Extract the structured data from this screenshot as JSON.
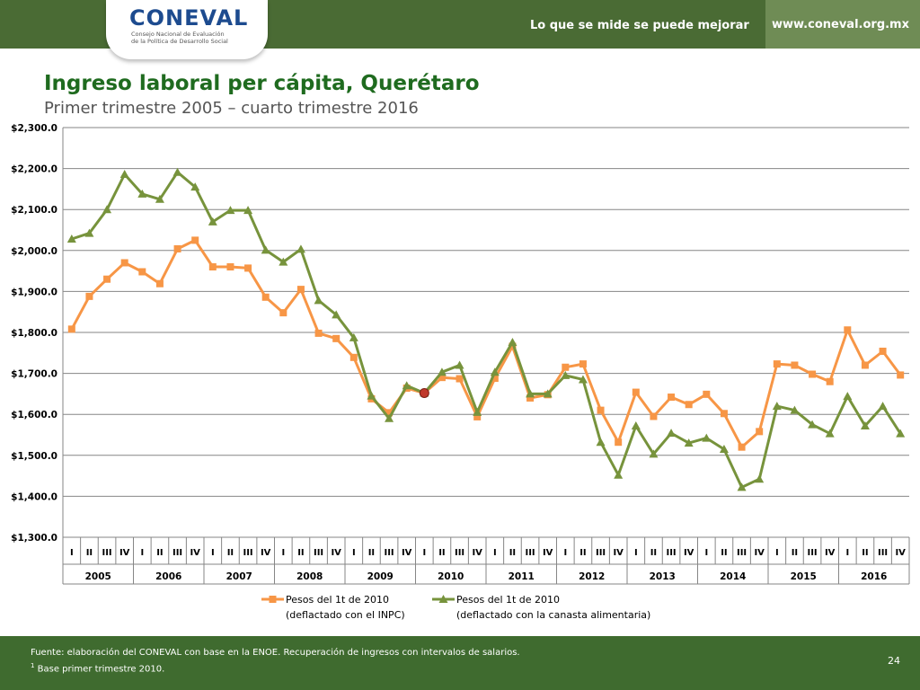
{
  "header": {
    "logo_text": "CONEVAL",
    "logo_sub1": "Consejo Nacional de Evaluación",
    "logo_sub2": "de la Política de Desarrollo Social",
    "slogan": "Lo que se mide se puede mejorar",
    "url": "www.coneval.org.mx"
  },
  "title": "Ingreso laboral per cápita, Querétaro",
  "subtitle": "Primer trimestre 2005 – cuarto trimestre 2016",
  "footer": {
    "note1": "Fuente: elaboración del CONEVAL con base en la ENOE. Recuperación de ingresos con intervalos de salarios.",
    "note2_sup": "1",
    "note2": "Base primer trimestre 2010.",
    "page": "24"
  },
  "colors": {
    "orange": "#f79646",
    "green": "#77933c",
    "base_point": "#c0392b",
    "header_green": "#4a6b34",
    "footer_green": "#3f6b2f"
  },
  "chart_data": {
    "type": "line",
    "ylim": [
      1300,
      2300
    ],
    "y_ticks": [
      "$1,300.0",
      "$1,400.0",
      "$1,500.0",
      "$1,600.0",
      "$1,700.0",
      "$1,800.0",
      "$1,900.0",
      "$2,000.0",
      "$2,100.0",
      "$2,200.0",
      "$2,300.0"
    ],
    "quarters": [
      "I",
      "II",
      "III",
      "IV"
    ],
    "years": [
      "2005",
      "2006",
      "2007",
      "2008",
      "2009",
      "2010",
      "2011",
      "2012",
      "2013",
      "2014",
      "2015",
      "2016"
    ],
    "grid": "horizontal",
    "legend_position": "bottom",
    "series": [
      {
        "name": "Pesos del 1t de 2010",
        "name_line2": "(deflactado con el INPC)",
        "color": "#f79646",
        "marker": "square",
        "values": [
          1808,
          1888,
          1930,
          1970,
          1948,
          1919,
          2004,
          2025,
          1960,
          1960,
          1957,
          1886,
          1848,
          1905,
          1798,
          1785,
          1739,
          1638,
          1604,
          1664,
          1652,
          1690,
          1687,
          1594,
          1688,
          1766,
          1640,
          1648,
          1715,
          1723,
          1610,
          1532,
          1654,
          1595,
          1642,
          1624,
          1649,
          1602,
          1520,
          1558,
          1723,
          1720,
          1698,
          1680,
          1806,
          1720,
          1754,
          1696
        ]
      },
      {
        "name": "Pesos del 1t de 2010",
        "name_line2": "(deflactado con la canasta alimentaria)",
        "color": "#77933c",
        "marker": "triangle",
        "values": [
          2028,
          2042,
          2100,
          2186,
          2138,
          2125,
          2191,
          2155,
          2070,
          2098,
          2098,
          2001,
          1972,
          2003,
          1878,
          1843,
          1787,
          1645,
          1590,
          1670,
          1652,
          1703,
          1720,
          1605,
          1703,
          1776,
          1650,
          1650,
          1695,
          1685,
          1532,
          1452,
          1572,
          1503,
          1554,
          1530,
          1542,
          1515,
          1422,
          1442,
          1620,
          1610,
          1575,
          1553,
          1644,
          1572,
          1620,
          1553
        ]
      }
    ],
    "base_point": {
      "index": 20,
      "value": 1652
    }
  }
}
